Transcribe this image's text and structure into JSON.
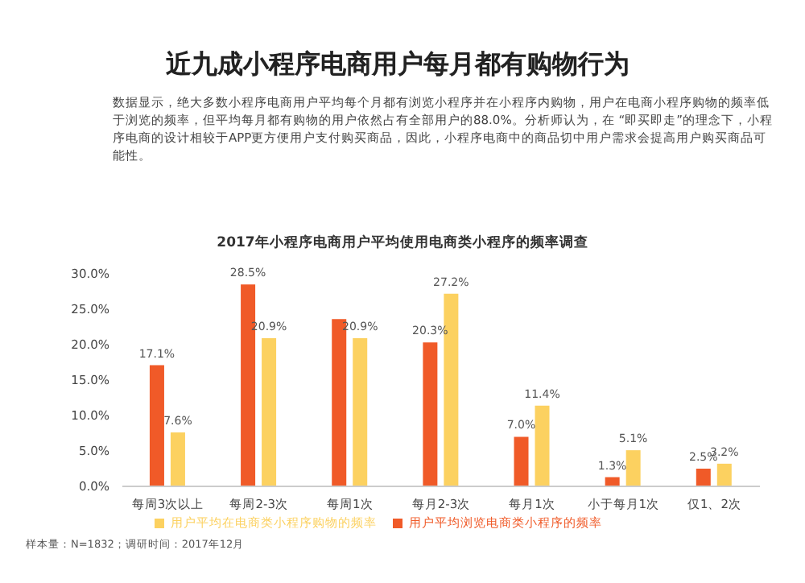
{
  "chart_data": {
    "type": "bar",
    "title": "近九成小程序电商用户每月都有购物行为",
    "subtitle": "2017年小程序电商用户平均使用电商类小程序的频率调查",
    "annotations": [
      "数据显示，绝大多数小程序电商用户平均每个月都有浏览小程序并在小程序内购物，用户在电商小程序购物的频率低于浏览的频率，但平均每月都有购物的用户依然占有全部用户的88.0%。分析师认为，在 “即买即走”的理念下，小程序电商的设计相较于APP更方便用户支付购买商品，因此，小程序电商中的商品切中用户需求会提高用户购买商品可能性。",
      "样本量：N=1832；调研时间：2017年12月"
    ],
    "categories": [
      "每周3次以上",
      "每周2-3次",
      "每周1次",
      "每月2-3次",
      "每月1次",
      "小于每月1次",
      "仅1、2次"
    ],
    "series": [
      {
        "name": "用户平均浏览电商类小程序的频率",
        "color": "#f05a28",
        "values": [
          17.1,
          28.5,
          23.6,
          20.3,
          7.0,
          1.3,
          2.5
        ],
        "value_labels": [
          "17.1%",
          "28.5%",
          null,
          "20.3%",
          "7.0%",
          "1.3%",
          "2.5%"
        ]
      },
      {
        "name": "用户平均在电商类小程序购物的频率",
        "color": "#fcd160",
        "values": [
          7.6,
          20.9,
          20.9,
          27.2,
          11.4,
          5.1,
          3.2
        ],
        "value_labels": [
          "7.6%",
          "20.9%",
          "20.9%",
          "27.2%",
          "11.4%",
          "5.1%",
          "3.2%"
        ]
      }
    ],
    "ylim": [
      0,
      30
    ],
    "yticks": [
      {
        "value": 0,
        "label": "0.0%"
      },
      {
        "value": 5,
        "label": "5.0%"
      },
      {
        "value": 10,
        "label": "10.0%"
      },
      {
        "value": 15,
        "label": "15.0%"
      },
      {
        "value": 20,
        "label": "20.0%"
      },
      {
        "value": 25,
        "label": "25.0%"
      },
      {
        "value": 30,
        "label": "30.0%"
      }
    ],
    "grid": false,
    "legend": "bottom"
  }
}
